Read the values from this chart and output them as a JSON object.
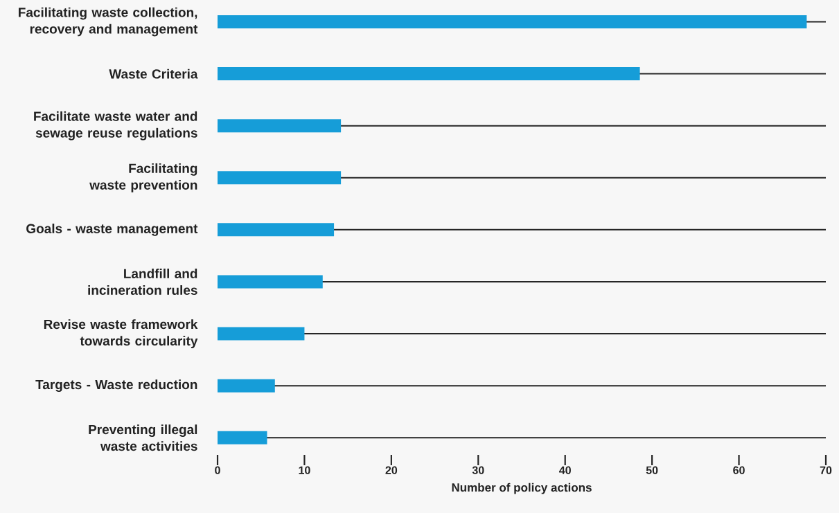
{
  "chart_data": {
    "type": "bar",
    "orientation": "horizontal",
    "categories": [
      "Facilitating waste collection, recovery and management",
      "Waste Criteria",
      "Facilitate waste water and sewage reuse regulations",
      "Facilitating waste prevention",
      "Goals - waste management",
      "Landfill and incineration rules",
      "Revise waste framework towards circularity",
      "Targets - Waste reduction",
      "Preventing illegal waste activities"
    ],
    "values": [
      67.8,
      48.6,
      14.2,
      14.2,
      13.4,
      12.1,
      10,
      6.6,
      5.7
    ],
    "color": "#169dd8",
    "xlim": [
      0,
      70
    ],
    "xticks": [
      0,
      10,
      20,
      30,
      40,
      50,
      60,
      70
    ],
    "xlabel": "Number of policy actions",
    "grid": "y"
  }
}
